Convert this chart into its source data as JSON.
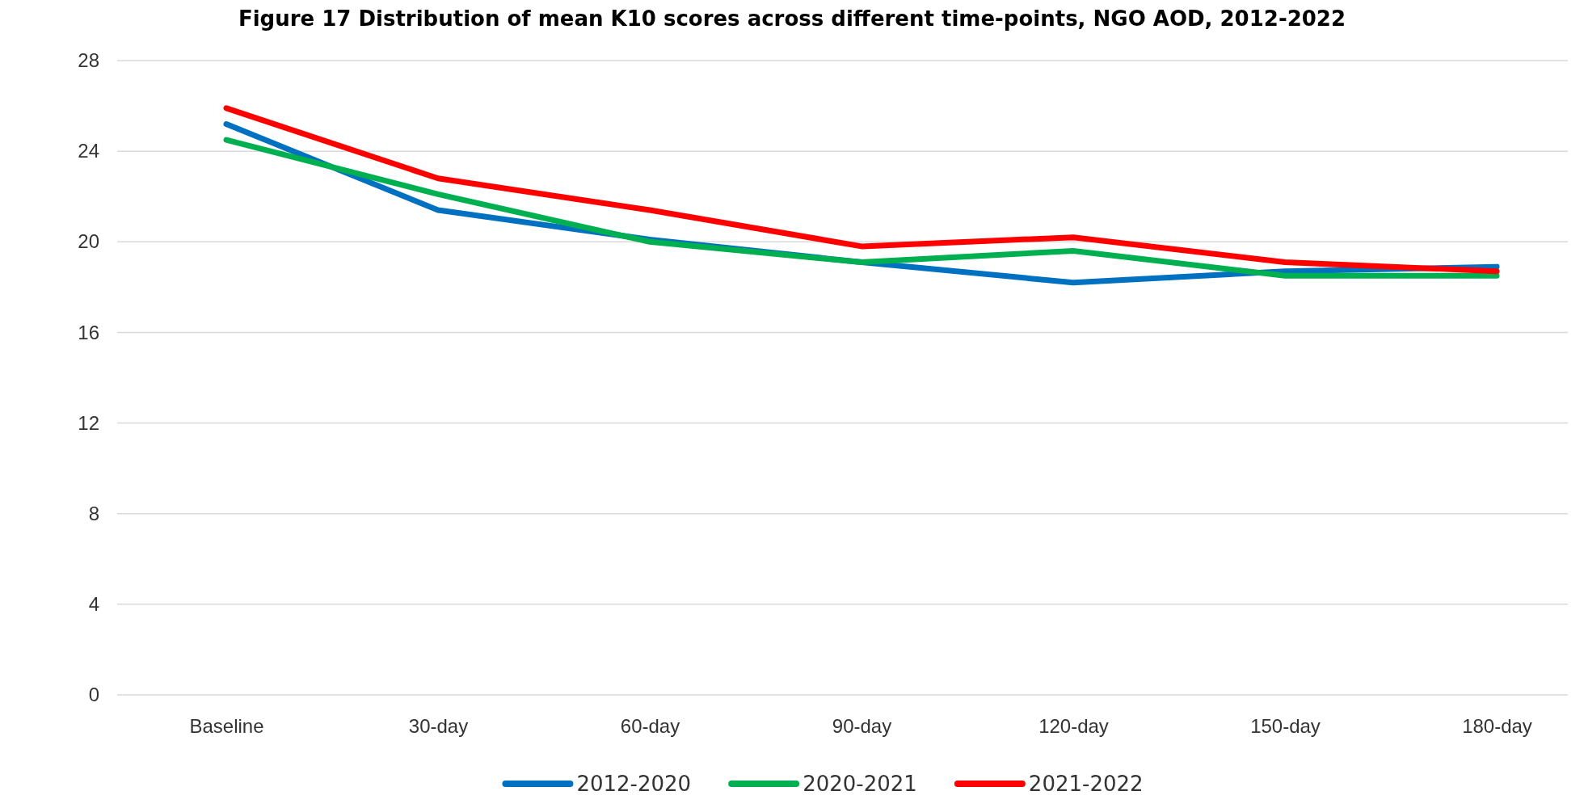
{
  "chart_data": {
    "type": "line",
    "title": "Figure 17  Distribution of mean K10 scores across different time-points, NGO AOD, 2012-2022",
    "categories": [
      "Baseline",
      "30-day",
      "60-day",
      "90-day",
      "120-day",
      "150-day",
      "180-day"
    ],
    "series": [
      {
        "name": "2012-2020",
        "color": "#0070c0",
        "values": [
          25.2,
          21.4,
          20.1,
          19.1,
          18.2,
          18.7,
          18.9
        ]
      },
      {
        "name": "2020-2021",
        "color": "#00b050",
        "values": [
          24.5,
          22.1,
          20.0,
          19.1,
          19.6,
          18.5,
          18.5
        ]
      },
      {
        "name": "2021-2022",
        "color": "#ff0000",
        "values": [
          25.9,
          22.8,
          21.4,
          19.8,
          20.2,
          19.1,
          18.7
        ]
      }
    ],
    "ylim": [
      0,
      28
    ],
    "yticks": [
      0,
      4,
      8,
      12,
      16,
      20,
      24,
      28
    ],
    "grid": "y",
    "legend": "bottom",
    "marker": "none",
    "line_style": "solid"
  }
}
